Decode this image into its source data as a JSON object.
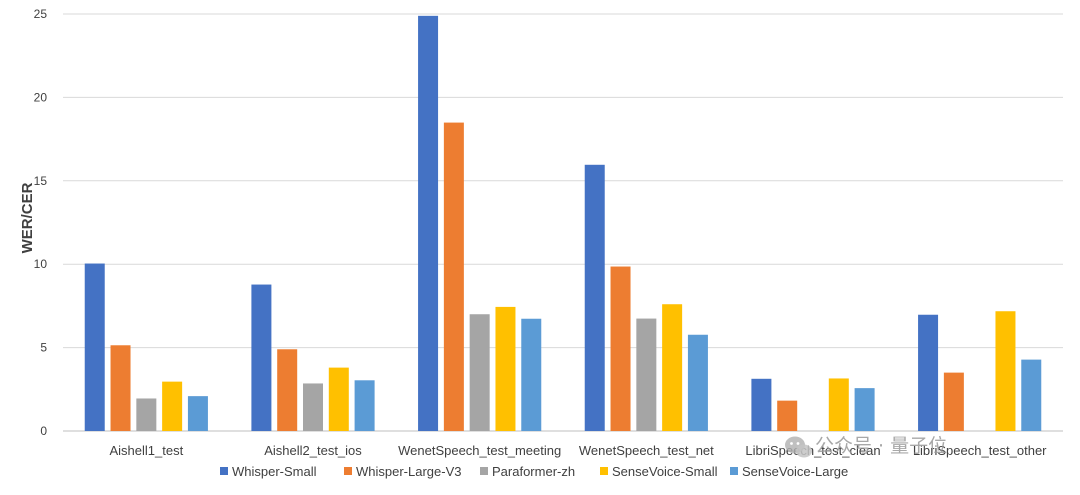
{
  "chart_data": {
    "type": "bar",
    "title": "",
    "xlabel": "",
    "ylabel": "WER/CER",
    "ylim": [
      0,
      25
    ],
    "yticks": [
      0,
      5,
      10,
      15,
      20,
      25
    ],
    "grid": true,
    "legend_position": "bottom",
    "categories": [
      "Aishell1_test",
      "Aishell2_test_ios",
      "WenetSpeech_test_meeting",
      "WenetSpeech_test_net",
      "LibriSpeech_test_clean",
      "LibriSpeech_test_other"
    ],
    "series": [
      {
        "name": "Whisper-Small",
        "color": "#4472C4",
        "values": [
          10.04,
          8.78,
          24.89,
          15.96,
          3.13,
          6.97
        ]
      },
      {
        "name": "Whisper-Large-V3",
        "color": "#ED7D31",
        "values": [
          5.14,
          4.9,
          18.49,
          9.86,
          1.82,
          3.5
        ]
      },
      {
        "name": "Paraformer-zh",
        "color": "#A5A5A5",
        "values": [
          1.95,
          2.85,
          7.0,
          6.74,
          null,
          null
        ]
      },
      {
        "name": "SenseVoice-Small",
        "color": "#FFC000",
        "values": [
          2.96,
          3.8,
          7.44,
          7.6,
          3.15,
          7.18
        ]
      },
      {
        "name": "SenseVoice-Large",
        "color": "#5B9BD5",
        "values": [
          2.09,
          3.04,
          6.73,
          5.77,
          2.57,
          4.28
        ]
      }
    ]
  },
  "watermark": {
    "text": "公众号 · 量子位",
    "icon": "wechat-icon"
  }
}
